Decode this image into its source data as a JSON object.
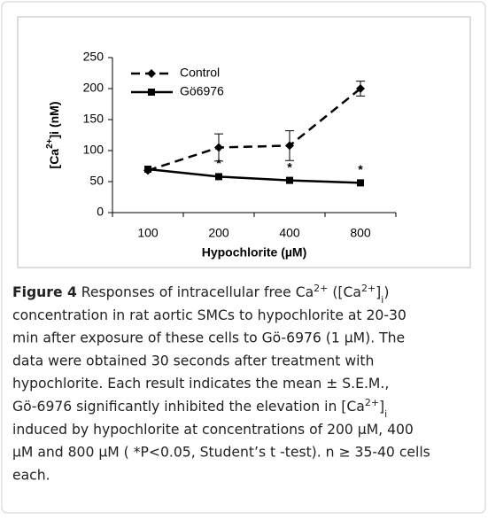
{
  "chart_data": {
    "type": "line",
    "x_label": "Hypochlorite (µM)",
    "y_label": [
      {
        "text": "[Ca",
        "style": "bold"
      },
      {
        "text": "2+",
        "style": "sup"
      },
      {
        "text": "]i (nM)",
        "style": "bold"
      }
    ],
    "categories": [
      "100",
      "200",
      "400",
      "800"
    ],
    "series": [
      {
        "name": "Control",
        "color": "#000000",
        "dash": true,
        "marker": "diamond",
        "values": [
          68,
          105,
          108,
          200
        ],
        "errors": [
          null,
          22,
          24,
          12
        ]
      },
      {
        "name": "Gö6976",
        "color": "#000000",
        "dash": false,
        "marker": "square",
        "values": [
          70,
          58,
          52,
          48
        ]
      }
    ],
    "annotations": [
      {
        "category": 1,
        "text": "*"
      },
      {
        "category": 2,
        "text": "*"
      },
      {
        "category": 3,
        "text": "*"
      }
    ],
    "ylim": [
      0,
      250
    ],
    "yticks": [
      0,
      50,
      100,
      150,
      200,
      250
    ],
    "legend": "upper-left"
  },
  "caption": {
    "lines": [
      [
        {
          "text": "Figure 4",
          "style": "bold"
        },
        {
          "text": " Responses of intracellular free Ca",
          "style": "normal"
        },
        {
          "text": "2+",
          "style": "sup"
        },
        {
          "text": " ([Ca",
          "style": "normal"
        },
        {
          "text": "2+",
          "style": "sup"
        },
        {
          "text": "]",
          "style": "normal"
        },
        {
          "text": "i",
          "style": "sub"
        },
        {
          "text": ")",
          "style": "normal"
        }
      ],
      [
        {
          "text": "concentration in rat aortic SMCs to hypochlorite at 20-30",
          "style": "normal"
        }
      ],
      [
        {
          "text": "min after exposure of these cells to Gö-6976 (1 µM). The",
          "style": "normal"
        }
      ],
      [
        {
          "text": "data were obtained 30 seconds after treatment with",
          "style": "normal"
        }
      ],
      [
        {
          "text": "hypochlorite. Each result indicates the mean ± S.E.M.,",
          "style": "normal"
        }
      ],
      [
        {
          "text": "Gö-6976 significantly inhibited the elevation in [Ca",
          "style": "normal"
        },
        {
          "text": "2+",
          "style": "sup"
        },
        {
          "text": "]",
          "style": "normal"
        },
        {
          "text": "i",
          "style": "sub"
        }
      ],
      [
        {
          "text": "induced by hypochlorite at concentrations of 200 µM, 400",
          "style": "normal"
        }
      ],
      [
        {
          "text": "µM and 800 µM ( *P<0.05, Student’s t -test). n ≥ 35-40 cells",
          "style": "normal"
        }
      ],
      [
        {
          "text": "each.",
          "style": "normal"
        }
      ]
    ]
  }
}
